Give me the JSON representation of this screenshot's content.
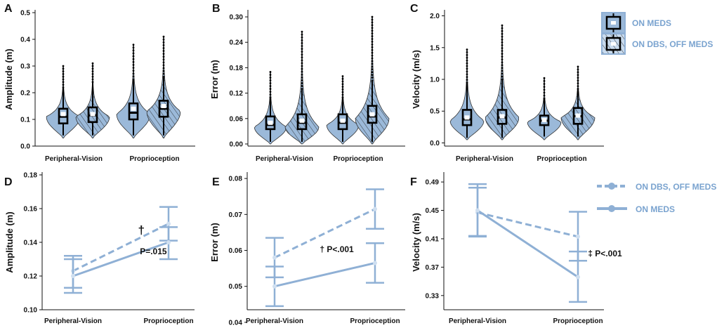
{
  "colors": {
    "fill": "#9bb9d9",
    "line": "#8fb0d5",
    "ink": "#111111",
    "legend_text": "#7aa3cf"
  },
  "legend_top": {
    "items": [
      {
        "label": "ON MEDS",
        "icon": "boxplot-solid-icon"
      },
      {
        "label": "ON DBS, OFF MEDS",
        "icon": "boxplot-hatched-icon"
      }
    ]
  },
  "legend_bottom": {
    "items": [
      {
        "label": "ON DBS, OFF MEDS",
        "style": "dashed"
      },
      {
        "label": "ON MEDS",
        "style": "solid"
      }
    ]
  },
  "chart_data": [
    {
      "letter": "A",
      "type": "violin",
      "ylabel": "Amplitude (m)",
      "ylim": [
        0,
        0.5
      ],
      "yticks": [
        "0.0",
        "0.1",
        "0.2",
        "0.3",
        "0.4",
        "0.5"
      ],
      "ytick_values": [
        0,
        0.1,
        0.2,
        0.3,
        0.4,
        0.5
      ],
      "categories": [
        "Peripheral-Vision",
        "Proprioception"
      ],
      "series": [
        "ON MEDS",
        "ON DBS, OFF MEDS"
      ],
      "groups": [
        {
          "category": "Peripheral-Vision",
          "series": "ON MEDS",
          "min": 0.03,
          "max": 0.3,
          "q1": 0.085,
          "median": 0.11,
          "q3": 0.14,
          "mean": 0.12,
          "wlo": 0.04,
          "whi": 0.22,
          "mode": 0.11,
          "width": 1.0
        },
        {
          "category": "Peripheral-Vision",
          "series": "ON DBS, OFF MEDS",
          "min": 0.03,
          "max": 0.31,
          "q1": 0.09,
          "median": 0.115,
          "q3": 0.145,
          "mean": 0.12,
          "wlo": 0.04,
          "whi": 0.24,
          "mode": 0.11,
          "width": 1.0
        },
        {
          "category": "Proprioception",
          "series": "ON MEDS",
          "min": 0.03,
          "max": 0.38,
          "q1": 0.1,
          "median": 0.125,
          "q3": 0.16,
          "mean": 0.14,
          "wlo": 0.04,
          "whi": 0.25,
          "mode": 0.12,
          "width": 1.0
        },
        {
          "category": "Proprioception",
          "series": "ON DBS, OFF MEDS",
          "min": 0.03,
          "max": 0.41,
          "q1": 0.11,
          "median": 0.14,
          "q3": 0.17,
          "mean": 0.15,
          "wlo": 0.04,
          "whi": 0.26,
          "mode": 0.13,
          "width": 1.0
        }
      ]
    },
    {
      "letter": "B",
      "type": "violin",
      "ylabel": "Error (m)",
      "ylim": [
        -0.005,
        0.31
      ],
      "yticks": [
        "0.00",
        "0.06",
        "0.12",
        "0.18",
        "0.24",
        "0.30"
      ],
      "ytick_values": [
        0,
        0.06,
        0.12,
        0.18,
        0.24,
        0.3
      ],
      "categories": [
        "Peripheral-Vision",
        "Proprioception"
      ],
      "series": [
        "ON MEDS",
        "ON DBS, OFF MEDS"
      ],
      "groups": [
        {
          "category": "Peripheral-Vision",
          "series": "ON MEDS",
          "min": 0.0,
          "max": 0.17,
          "q1": 0.035,
          "median": 0.045,
          "q3": 0.065,
          "mean": 0.05,
          "wlo": 0.005,
          "whi": 0.11,
          "mode": 0.04,
          "width": 0.95
        },
        {
          "category": "Peripheral-Vision",
          "series": "ON DBS, OFF MEDS",
          "min": 0.0,
          "max": 0.265,
          "q1": 0.035,
          "median": 0.05,
          "q3": 0.07,
          "mean": 0.055,
          "wlo": 0.005,
          "whi": 0.13,
          "mode": 0.04,
          "width": 1.0
        },
        {
          "category": "Proprioception",
          "series": "ON MEDS",
          "min": 0.0,
          "max": 0.16,
          "q1": 0.035,
          "median": 0.05,
          "q3": 0.07,
          "mean": 0.055,
          "wlo": 0.005,
          "whi": 0.11,
          "mode": 0.045,
          "width": 0.95
        },
        {
          "category": "Proprioception",
          "series": "ON DBS, OFF MEDS",
          "min": 0.0,
          "max": 0.3,
          "q1": 0.05,
          "median": 0.065,
          "q3": 0.09,
          "mean": 0.07,
          "wlo": 0.005,
          "whi": 0.15,
          "mode": 0.06,
          "width": 1.0
        }
      ]
    },
    {
      "letter": "C",
      "type": "violin",
      "ylabel": "Velocity (m/s)",
      "ylim": [
        -0.05,
        2.05
      ],
      "yticks": [
        "0.0",
        "0.5",
        "1.0",
        "1.5",
        "2.0"
      ],
      "ytick_values": [
        0,
        0.5,
        1.0,
        1.5,
        2.0
      ],
      "categories": [
        "Peripheral-Vision",
        "Proprioception"
      ],
      "series": [
        "ON MEDS",
        "ON DBS, OFF MEDS"
      ],
      "groups": [
        {
          "category": "Peripheral-Vision",
          "series": "ON MEDS",
          "min": 0.05,
          "max": 1.47,
          "q1": 0.28,
          "median": 0.37,
          "q3": 0.52,
          "mean": 0.4,
          "wlo": 0.08,
          "whi": 0.95,
          "mode": 0.35,
          "width": 1.0
        },
        {
          "category": "Peripheral-Vision",
          "series": "ON DBS, OFF MEDS",
          "min": 0.05,
          "max": 1.85,
          "q1": 0.3,
          "median": 0.4,
          "q3": 0.52,
          "mean": 0.42,
          "wlo": 0.08,
          "whi": 1.0,
          "mode": 0.4,
          "width": 1.0
        },
        {
          "category": "Proprioception",
          "series": "ON MEDS",
          "min": 0.05,
          "max": 1.02,
          "q1": 0.28,
          "median": 0.35,
          "q3": 0.43,
          "mean": 0.36,
          "wlo": 0.1,
          "whi": 0.7,
          "mode": 0.33,
          "width": 1.0
        },
        {
          "category": "Proprioception",
          "series": "ON DBS, OFF MEDS",
          "min": 0.05,
          "max": 1.2,
          "q1": 0.3,
          "median": 0.42,
          "q3": 0.55,
          "mean": 0.43,
          "wlo": 0.1,
          "whi": 0.85,
          "mode": 0.4,
          "width": 1.0
        }
      ]
    },
    {
      "letter": "D",
      "type": "line",
      "ylabel": "Amplitude (m)",
      "ylim": [
        0.1,
        0.18
      ],
      "yticks": [
        "0.10",
        "0.12",
        "0.14",
        "0.16",
        "0.18"
      ],
      "ytick_values": [
        0.1,
        0.12,
        0.14,
        0.16,
        0.18
      ],
      "categories": [
        "Peripheral-Vision",
        "Proprioception"
      ],
      "series": [
        {
          "name": "ON DBS, OFF MEDS",
          "style": "dashed",
          "values": [
            0.123,
            0.151
          ],
          "err_low": [
            0.113,
            0.141
          ],
          "err_high": [
            0.132,
            0.161
          ]
        },
        {
          "name": "ON MEDS",
          "style": "solid",
          "values": [
            0.12,
            0.14
          ],
          "err_low": [
            0.11,
            0.13
          ],
          "err_high": [
            0.13,
            0.149
          ]
        }
      ],
      "annotations": [
        {
          "text": "†",
          "x": 0.68,
          "y": 0.145
        },
        {
          "text": "P=.015",
          "x": 0.7,
          "y": 0.133
        }
      ]
    },
    {
      "letter": "E",
      "type": "line",
      "ylabel": "Error (m)",
      "ylim": [
        0.0435,
        0.081
      ],
      "yticks": [
        "0.04",
        "0.05",
        "0.06",
        "0.07",
        "0.08"
      ],
      "ytick_values": [
        0.04,
        0.05,
        0.06,
        0.07,
        0.08
      ],
      "categories": [
        "Peripheral-Vision",
        "Proprioception"
      ],
      "series": [
        {
          "name": "ON DBS, OFF MEDS",
          "style": "dashed",
          "values": [
            0.058,
            0.0715
          ],
          "err_low": [
            0.0525,
            0.066
          ],
          "err_high": [
            0.0635,
            0.077
          ]
        },
        {
          "name": "ON MEDS",
          "style": "solid",
          "values": [
            0.05,
            0.0565
          ],
          "err_low": [
            0.0445,
            0.051
          ],
          "err_high": [
            0.0555,
            0.062
          ]
        }
      ],
      "annotations": [
        {
          "text": "† P<.001",
          "x": 0.45,
          "y": 0.0595
        }
      ]
    },
    {
      "letter": "F",
      "type": "line",
      "ylabel": "Velocity (m/s)",
      "ylim": [
        0.31,
        0.5
      ],
      "yticks": [
        "0.33",
        "0.37",
        "0.41",
        "0.45",
        "0.49"
      ],
      "ytick_values": [
        0.33,
        0.37,
        0.41,
        0.45,
        0.49
      ],
      "categories": [
        "Peripheral-Vision",
        "Proprioception"
      ],
      "series": [
        {
          "name": "ON DBS, OFF MEDS",
          "style": "dashed",
          "values": [
            0.447,
            0.413
          ],
          "err_low": [
            0.413,
            0.379
          ],
          "err_high": [
            0.482,
            0.448
          ]
        },
        {
          "name": "ON MEDS",
          "style": "solid",
          "values": [
            0.45,
            0.356
          ],
          "err_low": [
            0.414,
            0.321
          ],
          "err_high": [
            0.487,
            0.392
          ]
        }
      ],
      "annotations": [
        {
          "text": "‡ P<.001",
          "x": 1.1,
          "y": 0.385
        }
      ]
    }
  ]
}
